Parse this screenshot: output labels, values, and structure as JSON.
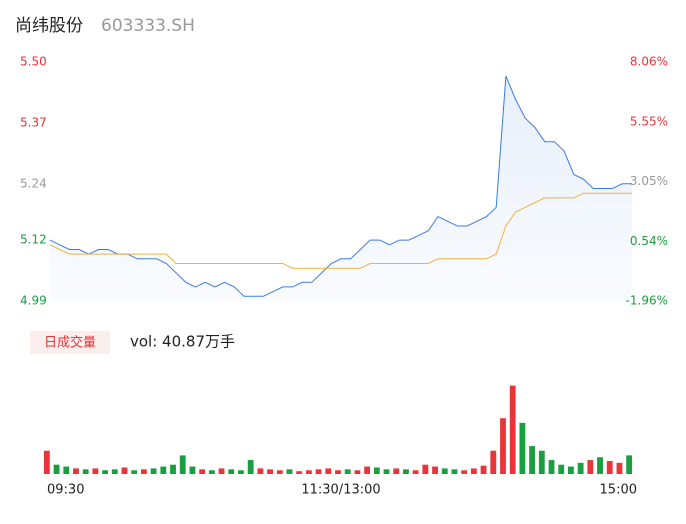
{
  "header": {
    "name": "尚纬股份",
    "code": "603333.SH"
  },
  "chart_data": [
    {
      "type": "line",
      "x": [
        0,
        4,
        8,
        12,
        16,
        20,
        24,
        28,
        32,
        36,
        40,
        44,
        48,
        52,
        56,
        60,
        64,
        68,
        72,
        76,
        80,
        84,
        88,
        92,
        96,
        100,
        104,
        108,
        112,
        116,
        120,
        124,
        128,
        132,
        136,
        140,
        144,
        148,
        152,
        156,
        160,
        164,
        168,
        172,
        176,
        180,
        184,
        188,
        192,
        196,
        200,
        204,
        208,
        212,
        216,
        220,
        224,
        228,
        232,
        236,
        240
      ],
      "series": [
        {
          "name": "price",
          "color": "#3a7de0",
          "values": [
            5.12,
            5.11,
            5.1,
            5.1,
            5.09,
            5.1,
            5.1,
            5.09,
            5.09,
            5.08,
            5.08,
            5.08,
            5.07,
            5.05,
            5.03,
            5.02,
            5.03,
            5.02,
            5.03,
            5.02,
            5.0,
            5.0,
            5.0,
            5.01,
            5.02,
            5.02,
            5.03,
            5.03,
            5.05,
            5.07,
            5.08,
            5.08,
            5.1,
            5.12,
            5.12,
            5.11,
            5.12,
            5.12,
            5.13,
            5.14,
            5.17,
            5.16,
            5.15,
            5.15,
            5.16,
            5.17,
            5.19,
            5.47,
            5.42,
            5.38,
            5.36,
            5.33,
            5.33,
            5.31,
            5.26,
            5.25,
            5.23,
            5.23,
            5.23,
            5.24,
            5.24
          ]
        },
        {
          "name": "average",
          "color": "#f0b23a",
          "values": [
            5.11,
            5.1,
            5.09,
            5.09,
            5.09,
            5.09,
            5.09,
            5.09,
            5.09,
            5.09,
            5.09,
            5.09,
            5.09,
            5.07,
            5.07,
            5.07,
            5.07,
            5.07,
            5.07,
            5.07,
            5.07,
            5.07,
            5.07,
            5.07,
            5.07,
            5.06,
            5.06,
            5.06,
            5.06,
            5.06,
            5.06,
            5.06,
            5.06,
            5.07,
            5.07,
            5.07,
            5.07,
            5.07,
            5.07,
            5.07,
            5.08,
            5.08,
            5.08,
            5.08,
            5.08,
            5.08,
            5.09,
            5.15,
            5.18,
            5.19,
            5.2,
            5.21,
            5.21,
            5.21,
            5.21,
            5.22,
            5.22,
            5.22,
            5.22,
            5.22,
            5.22
          ]
        }
      ],
      "xlim": [
        0,
        240
      ],
      "xticks": [
        {
          "value": 0,
          "label": "09:30"
        },
        {
          "value": 120,
          "label": "11:30/13:00"
        },
        {
          "value": 240,
          "label": "15:00"
        }
      ],
      "ylim": [
        4.99,
        5.5
      ],
      "yticks": [
        {
          "value": 5.5,
          "label": "5.50"
        },
        5.37,
        5.24,
        5.12,
        4.99
      ],
      "ytick_colors": [
        "#e8353a",
        "#e8353a",
        "#999999",
        "#1a9e3f",
        "#1a9e3f"
      ],
      "y2lim": [
        -1.96,
        8.06
      ],
      "y2ticks": [
        {
          "value": 8.06,
          "label": "8.06%"
        },
        {
          "value": 5.55,
          "label": "5.55%"
        },
        {
          "value": 3.05,
          "label": "3.05%"
        },
        {
          "value": 0.54,
          "label": "0.54%"
        },
        {
          "value": -1.96,
          "label": "-1.96%"
        }
      ],
      "y2tick_colors": [
        "#e8353a",
        "#e8353a",
        "#999999",
        "#1a9e3f",
        "#1a9e3f"
      ]
    },
    {
      "type": "bar",
      "label": "日成交量",
      "title": "vol: 40.87万手",
      "values": [
        25,
        10,
        8,
        6,
        5,
        6,
        4,
        5,
        7,
        4,
        5,
        6,
        8,
        10,
        20,
        8,
        5,
        4,
        6,
        5,
        4,
        15,
        6,
        5,
        4,
        5,
        3,
        4,
        5,
        6,
        4,
        5,
        4,
        8,
        7,
        5,
        6,
        5,
        4,
        10,
        8,
        6,
        5,
        4,
        6,
        9,
        25,
        60,
        95,
        55,
        30,
        25,
        15,
        10,
        8,
        12,
        15,
        18,
        14,
        12,
        20
      ],
      "colors": [
        "#e8353a",
        "#1a9e3f",
        "#1a9e3f",
        "#e8353a",
        "#1a9e3f",
        "#e8353a",
        "#1a9e3f",
        "#1a9e3f",
        "#e8353a",
        "#1a9e3f",
        "#e8353a",
        "#1a9e3f",
        "#1a9e3f",
        "#1a9e3f",
        "#1a9e3f",
        "#1a9e3f",
        "#e8353a",
        "#1a9e3f",
        "#e8353a",
        "#1a9e3f",
        "#1a9e3f",
        "#1a9e3f",
        "#e8353a",
        "#e8353a",
        "#e8353a",
        "#1a9e3f",
        "#e8353a",
        "#e8353a",
        "#e8353a",
        "#e8353a",
        "#e8353a",
        "#1a9e3f",
        "#e8353a",
        "#e8353a",
        "#1a9e3f",
        "#1a9e3f",
        "#e8353a",
        "#1a9e3f",
        "#e8353a",
        "#e8353a",
        "#e8353a",
        "#1a9e3f",
        "#1a9e3f",
        "#e8353a",
        "#e8353a",
        "#e8353a",
        "#e8353a",
        "#e8353a",
        "#e8353a",
        "#1a9e3f",
        "#1a9e3f",
        "#1a9e3f",
        "#1a9e3f",
        "#1a9e3f",
        "#1a9e3f",
        "#1a9e3f",
        "#e8353a",
        "#1a9e3f",
        "#e8353a",
        "#e8353a",
        "#1a9e3f"
      ],
      "ylim": [
        0,
        100
      ]
    }
  ]
}
